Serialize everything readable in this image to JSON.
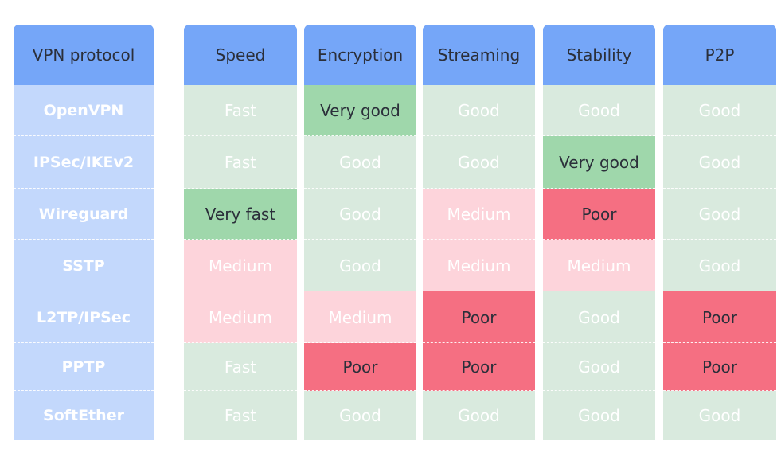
{
  "table": {
    "columns": [
      "VPN protocol",
      "Speed",
      "Encryption",
      "Streaming",
      "Stability",
      "P2P"
    ],
    "header_fill": "#75a6f8",
    "header_ink": "#2b2f3a",
    "protocol_fill": "#c3d8fc",
    "rows": [
      [
        "OpenVPN",
        {
          "text": "Fast",
          "fill": "#d9eade",
          "ink": "#ffffff"
        },
        {
          "text": "Very good",
          "fill": "#9fd7ab",
          "ink": "#2b2f3a"
        },
        {
          "text": "Good",
          "fill": "#d9eade",
          "ink": "#ffffff"
        },
        {
          "text": "Good",
          "fill": "#d9eade",
          "ink": "#ffffff"
        },
        {
          "text": "Good",
          "fill": "#d9eade",
          "ink": "#ffffff"
        }
      ],
      [
        "IPSec/IKEv2",
        {
          "text": "Fast",
          "fill": "#d9eade",
          "ink": "#ffffff"
        },
        {
          "text": "Good",
          "fill": "#d9eade",
          "ink": "#ffffff"
        },
        {
          "text": "Good",
          "fill": "#d9eade",
          "ink": "#ffffff"
        },
        {
          "text": "Very good",
          "fill": "#9fd7ab",
          "ink": "#2b2f3a"
        },
        {
          "text": "Good",
          "fill": "#d9eade",
          "ink": "#ffffff"
        }
      ],
      [
        "Wireguard",
        {
          "text": "Very fast",
          "fill": "#9fd7ab",
          "ink": "#2b2f3a"
        },
        {
          "text": "Good",
          "fill": "#d9eade",
          "ink": "#ffffff"
        },
        {
          "text": "Medium",
          "fill": "#fdd4db",
          "ink": "#ffffff"
        },
        {
          "text": "Poor",
          "fill": "#f56f82",
          "ink": "#2b2f3a"
        },
        {
          "text": "Good",
          "fill": "#d9eade",
          "ink": "#ffffff"
        }
      ],
      [
        "SSTP",
        {
          "text": "Medium",
          "fill": "#fdd4db",
          "ink": "#ffffff"
        },
        {
          "text": "Good",
          "fill": "#d9eade",
          "ink": "#ffffff"
        },
        {
          "text": "Medium",
          "fill": "#fdd4db",
          "ink": "#ffffff"
        },
        {
          "text": "Medium",
          "fill": "#fdd4db",
          "ink": "#ffffff"
        },
        {
          "text": "Good",
          "fill": "#d9eade",
          "ink": "#ffffff"
        }
      ],
      [
        "L2TP/IPSec",
        {
          "text": "Medium",
          "fill": "#fdd4db",
          "ink": "#ffffff"
        },
        {
          "text": "Medium",
          "fill": "#fdd4db",
          "ink": "#ffffff"
        },
        {
          "text": "Poor",
          "fill": "#f56f82",
          "ink": "#2b2f3a"
        },
        {
          "text": "Good",
          "fill": "#d9eade",
          "ink": "#ffffff"
        },
        {
          "text": "Poor",
          "fill": "#f56f82",
          "ink": "#2b2f3a"
        }
      ],
      [
        "PPTP",
        {
          "text": "Fast",
          "fill": "#d9eade",
          "ink": "#ffffff"
        },
        {
          "text": "Poor",
          "fill": "#f56f82",
          "ink": "#2b2f3a"
        },
        {
          "text": "Poor",
          "fill": "#f56f82",
          "ink": "#2b2f3a"
        },
        {
          "text": "Good",
          "fill": "#d9eade",
          "ink": "#ffffff"
        },
        {
          "text": "Poor",
          "fill": "#f56f82",
          "ink": "#2b2f3a"
        }
      ],
      [
        "SoftEther",
        {
          "text": "Fast",
          "fill": "#d9eade",
          "ink": "#ffffff"
        },
        {
          "text": "Good",
          "fill": "#d9eade",
          "ink": "#ffffff"
        },
        {
          "text": "Good",
          "fill": "#d9eade",
          "ink": "#ffffff"
        },
        {
          "text": "Good",
          "fill": "#d9eade",
          "ink": "#ffffff"
        },
        {
          "text": "Good",
          "fill": "#d9eade",
          "ink": "#ffffff"
        }
      ]
    ]
  }
}
